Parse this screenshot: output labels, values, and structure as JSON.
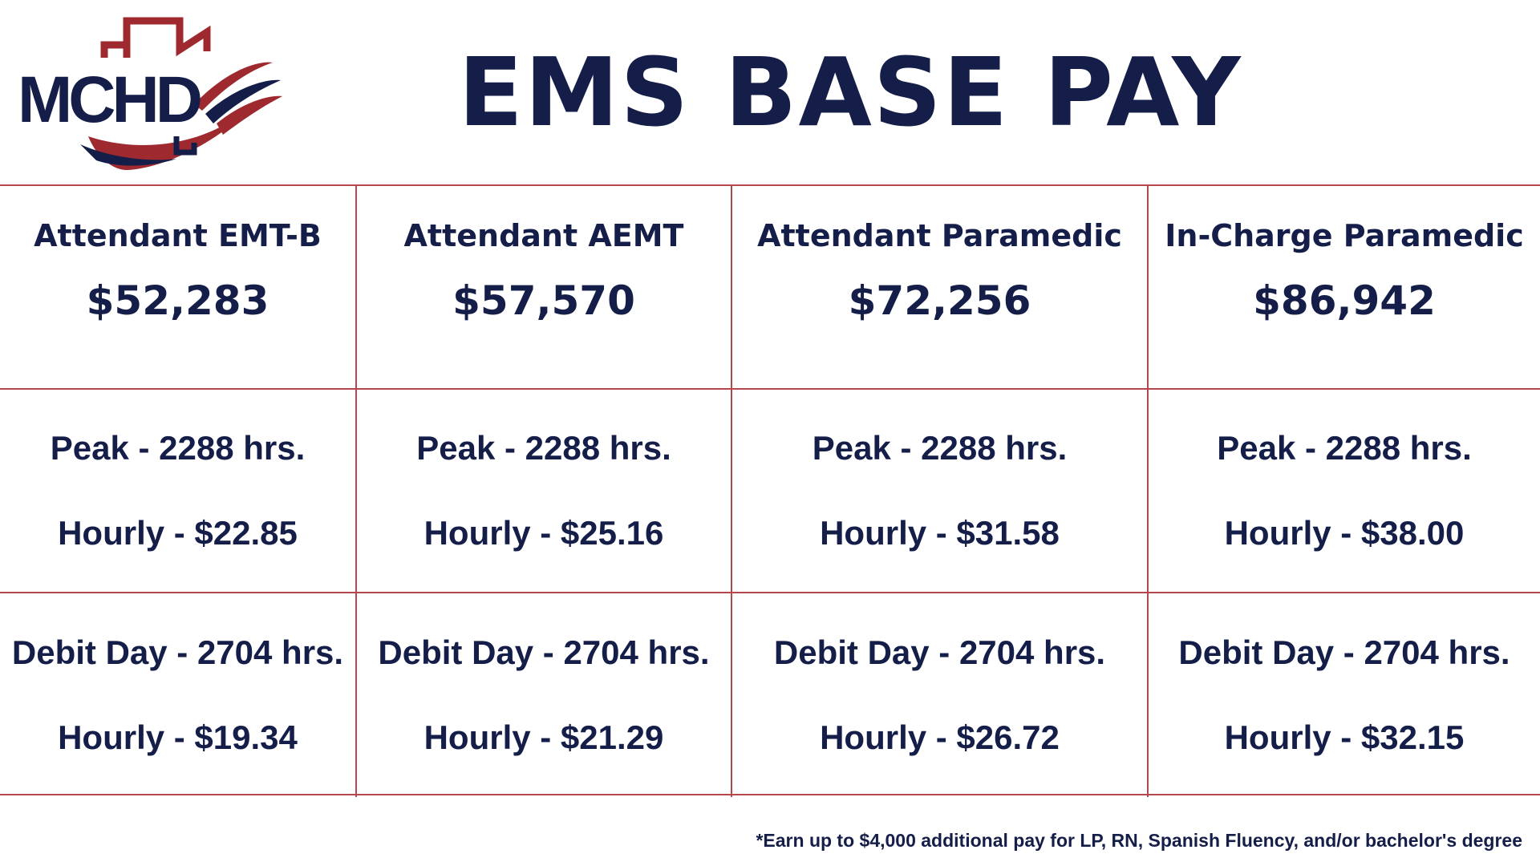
{
  "header": {
    "logo_text": "MCHD",
    "title": "EMS BASE PAY"
  },
  "colors": {
    "navy": "#141e48",
    "red": "#9e2a2f",
    "grid_line": "#b5484d"
  },
  "roles": [
    {
      "title": "Attendant EMT-B",
      "salary": "$52,283",
      "peak_hours": "Peak - 2288 hrs.",
      "peak_hourly": "Hourly - $22.85",
      "debit_hours": "Debit Day - 2704 hrs.",
      "debit_hourly": "Hourly - $19.34"
    },
    {
      "title": "Attendant AEMT",
      "salary": "$57,570",
      "peak_hours": "Peak - 2288 hrs.",
      "peak_hourly": "Hourly - $25.16",
      "debit_hours": "Debit Day - 2704 hrs.",
      "debit_hourly": "Hourly - $21.29"
    },
    {
      "title": "Attendant Paramedic",
      "salary": "$72,256",
      "peak_hours": "Peak - 2288 hrs.",
      "peak_hourly": "Hourly - $31.58",
      "debit_hours": "Debit Day - 2704 hrs.",
      "debit_hourly": "Hourly - $26.72"
    },
    {
      "title": "In-Charge Paramedic",
      "salary": "$86,942",
      "peak_hours": "Peak - 2288 hrs.",
      "peak_hourly": "Hourly - $38.00",
      "debit_hours": "Debit Day - 2704 hrs.",
      "debit_hourly": "Hourly - $32.15"
    }
  ],
  "footnote": "*Earn up to $4,000 additional pay for LP, RN, Spanish Fluency, and/or bachelor's degree"
}
